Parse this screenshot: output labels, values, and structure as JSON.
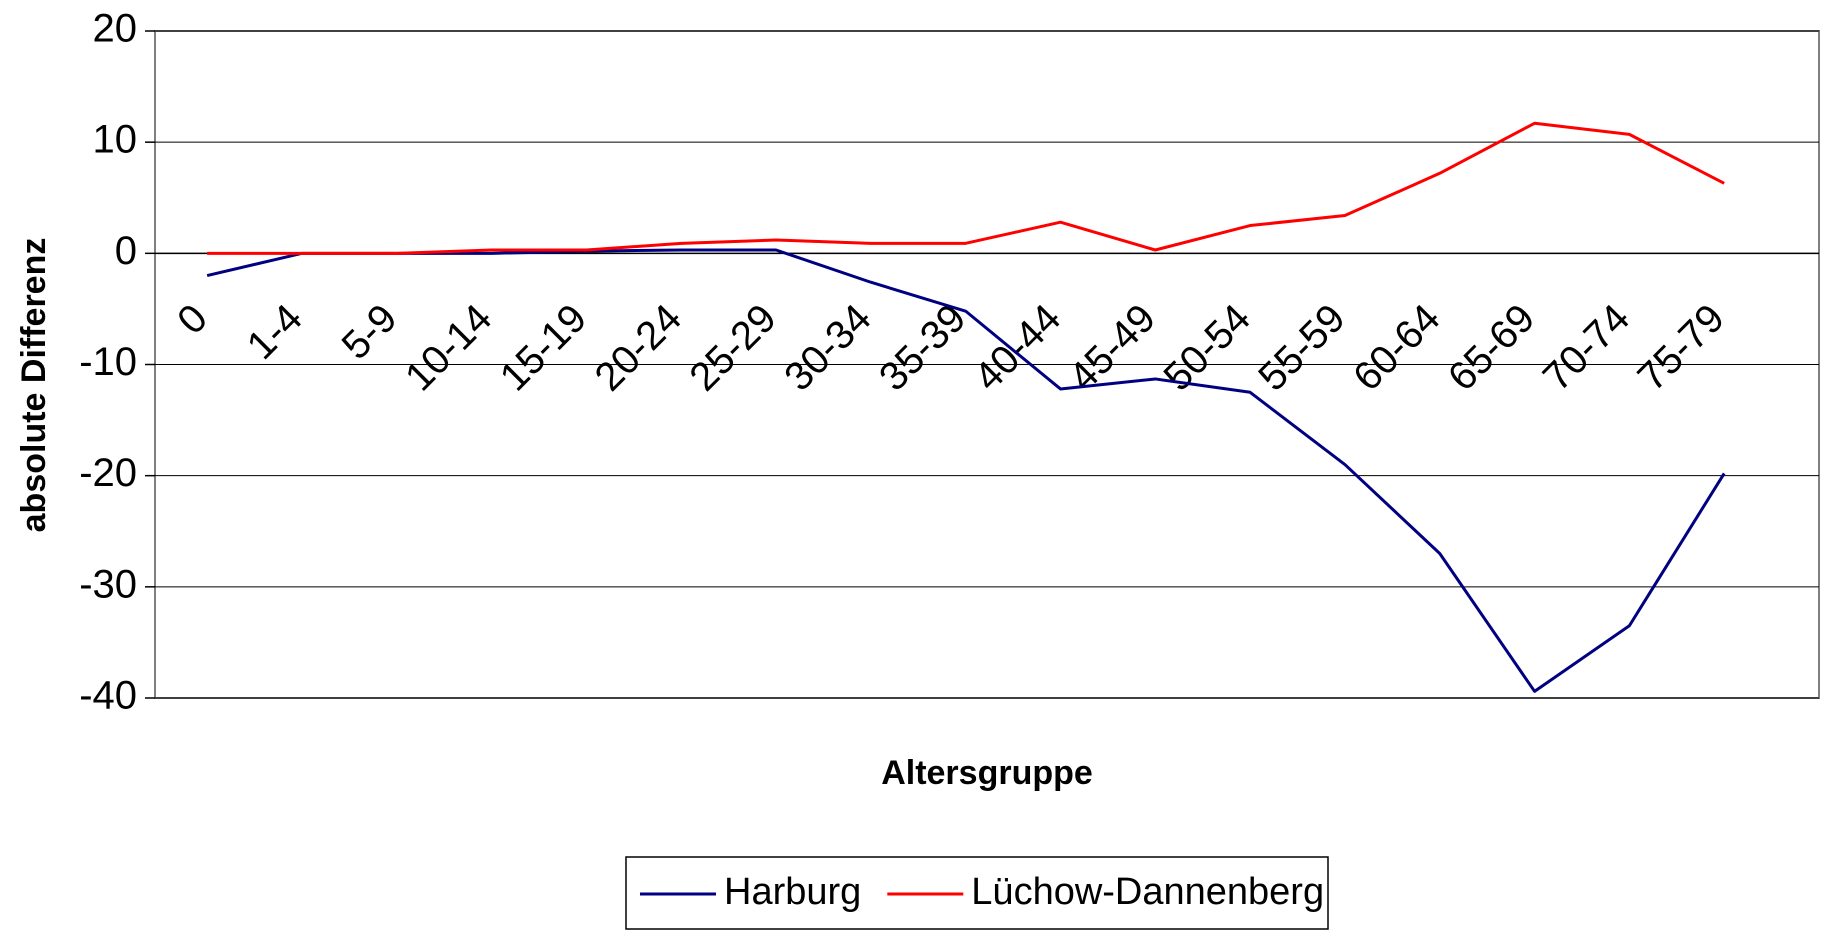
{
  "chart_data": {
    "type": "line",
    "x_label": "Altersgruppe",
    "y_label": "absolute Differenz",
    "categories": [
      "0",
      "1-4",
      "5-9",
      "10-14",
      "15-19",
      "20-24",
      "25-29",
      "30-34",
      "35-39",
      "40-44",
      "45-49",
      "50-54",
      "55-59",
      "60-64",
      "65-69",
      "70-74",
      "75-79"
    ],
    "series": [
      {
        "name": "Harburg",
        "color": "#000080",
        "values": [
          -2,
          0,
          0,
          0,
          0.2,
          0.3,
          0.3,
          -2.6,
          -5.2,
          -12.2,
          -11.3,
          -12.5,
          -19,
          -27,
          -39.4,
          -33.5,
          -19.8
        ]
      },
      {
        "name": "Lüchow-Dannenberg",
        "color": "#ff0000",
        "values": [
          0,
          0,
          0,
          0.3,
          0.3,
          0.9,
          1.2,
          0.9,
          0.9,
          2.8,
          0.3,
          2.5,
          3.4,
          7.2,
          11.7,
          10.7,
          6.3
        ]
      }
    ],
    "ylim": [
      -40,
      20
    ],
    "yticks": [
      -40,
      -30,
      -20,
      -10,
      0,
      10,
      20
    ],
    "grid": true,
    "legend": "bottom"
  }
}
